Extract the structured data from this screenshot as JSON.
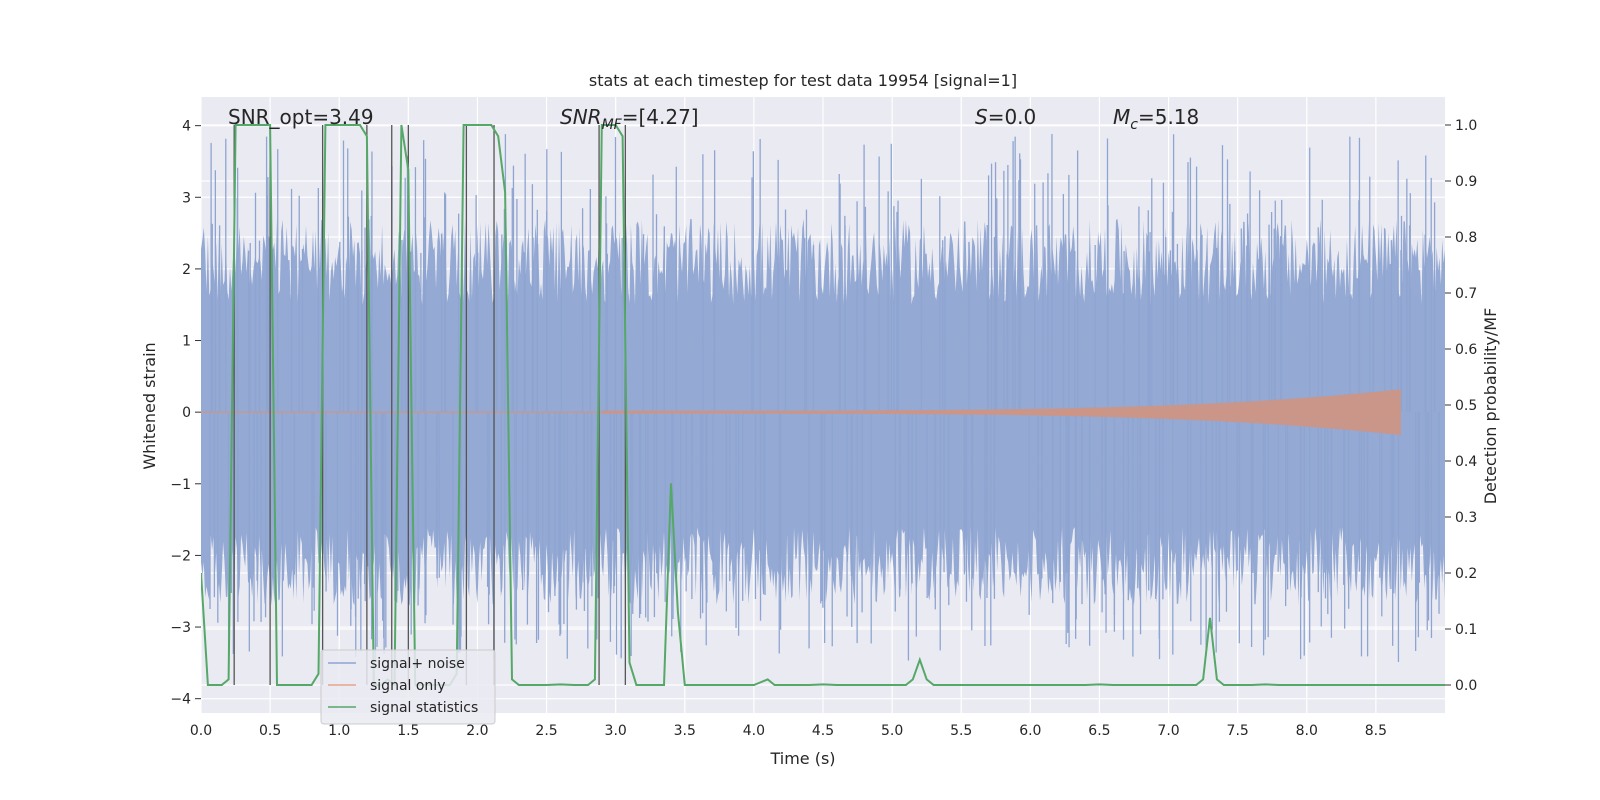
{
  "chart_data": {
    "type": "line",
    "title": "stats at each timestep for test data 19954 [signal=1]",
    "xlabel": "Time (s)",
    "ylabel_left": "Whitened strain",
    "ylabel_right": "Detection probability/MF",
    "xlim": [
      0.0,
      9.0
    ],
    "ylim_left": [
      -4.2,
      4.4
    ],
    "ylim_right": [
      -0.05,
      1.05
    ],
    "xticks": [
      "0.0",
      "0.5",
      "1.0",
      "1.5",
      "2.0",
      "2.5",
      "3.0",
      "3.5",
      "4.0",
      "4.5",
      "5.0",
      "5.5",
      "6.0",
      "6.5",
      "7.0",
      "7.5",
      "8.0",
      "8.5"
    ],
    "yticks_left": [
      "−4",
      "−3",
      "−2",
      "−1",
      "0",
      "1",
      "2",
      "3",
      "4"
    ],
    "yticks_right": [
      "0.0",
      "0.1",
      "0.2",
      "0.3",
      "0.4",
      "0.5",
      "0.6",
      "0.7",
      "0.8",
      "0.9",
      "1.0"
    ],
    "annotations": {
      "snr_opt": "SNR_opt=3.49",
      "snr_mf_main": "SNR",
      "snr_mf_sub": "MF",
      "snr_mf_value": "=[4.27]",
      "s_main": "S",
      "s_value": "=0.0",
      "mc_main": "M",
      "mc_sub": "c",
      "mc_value": "=5.18"
    },
    "legend": {
      "position": "lower-left",
      "entries": [
        {
          "label": "signal+ noise",
          "color": "#8fa5d1"
        },
        {
          "label": "signal only",
          "color": "#e6a58a"
        },
        {
          "label": "signal statistics",
          "color": "#55a868"
        }
      ]
    },
    "colors": {
      "noise": "#8fa5d1",
      "signal": "#d3937d",
      "stats": "#55a868",
      "vline": "#555555",
      "grid": "#ffffff",
      "bg": "#eaeaf2"
    },
    "series": [
      {
        "name": "signal statistics",
        "axis": "right",
        "x": [
          0.0,
          0.05,
          0.1,
          0.15,
          0.2,
          0.25,
          0.3,
          0.35,
          0.4,
          0.45,
          0.5,
          0.55,
          0.6,
          0.65,
          0.7,
          0.75,
          0.8,
          0.85,
          0.9,
          0.95,
          1.0,
          1.05,
          1.1,
          1.15,
          1.2,
          1.25,
          1.3,
          1.35,
          1.4,
          1.45,
          1.5,
          1.55,
          1.6,
          1.65,
          1.7,
          1.75,
          1.8,
          1.85,
          1.9,
          1.95,
          2.0,
          2.05,
          2.1,
          2.15,
          2.2,
          2.25,
          2.3,
          2.35,
          2.4,
          2.45,
          2.5,
          2.6,
          2.7,
          2.8,
          2.85,
          2.9,
          2.95,
          3.0,
          3.05,
          3.1,
          3.15,
          3.2,
          3.25,
          3.3,
          3.35,
          3.4,
          3.45,
          3.5,
          3.55,
          3.6,
          3.7,
          3.8,
          3.9,
          4.0,
          4.1,
          4.15,
          4.2,
          4.3,
          4.4,
          4.5,
          4.6,
          4.7,
          4.8,
          4.9,
          5.0,
          5.1,
          5.15,
          5.2,
          5.25,
          5.3,
          5.35,
          5.4,
          5.5,
          5.6,
          5.7,
          5.8,
          5.9,
          6.0,
          6.2,
          6.4,
          6.5,
          6.6,
          6.8,
          7.0,
          7.1,
          7.2,
          7.25,
          7.3,
          7.35,
          7.4,
          7.5,
          7.6,
          7.7,
          7.8,
          8.0,
          8.2,
          8.4,
          8.6,
          8.8,
          9.0
        ],
        "y": [
          0.2,
          0.0,
          0.0,
          0.0,
          0.01,
          1.0,
          1.0,
          1.0,
          1.0,
          1.0,
          1.0,
          0.0,
          0.0,
          0.0,
          0.0,
          0.0,
          0.0,
          0.02,
          1.0,
          1.0,
          1.0,
          1.0,
          1.0,
          1.0,
          0.98,
          0.0,
          0.0,
          0.01,
          0.0,
          1.0,
          0.92,
          0.0,
          0.0,
          0.0,
          0.0,
          0.0,
          0.0,
          0.02,
          1.0,
          1.0,
          1.0,
          1.0,
          1.0,
          0.98,
          0.88,
          0.01,
          0.0,
          0.0,
          0.0,
          0.0,
          0.0,
          0.001,
          0.0,
          0.0,
          0.01,
          1.0,
          1.0,
          1.0,
          0.98,
          0.04,
          0.0,
          0.0,
          0.0,
          0.0,
          0.0,
          0.36,
          0.13,
          0.0,
          0.0,
          0.0,
          0.0,
          0.0,
          0.0,
          0.0,
          0.01,
          0.0,
          0.0,
          0.0,
          0.0,
          0.001,
          0.0,
          0.0,
          0.0,
          0.0,
          0.0,
          0.0,
          0.01,
          0.045,
          0.01,
          0.0,
          0.0,
          0.0,
          0.0,
          0.0,
          0.0,
          0.0,
          0.0,
          0.0,
          0.0,
          0.0,
          0.001,
          0.0,
          0.0,
          0.0,
          0.0,
          0.0,
          0.01,
          0.12,
          0.01,
          0.0,
          0.0,
          0.0,
          0.001,
          0.0,
          0.0,
          0.0,
          0.0,
          0.0,
          0.0,
          0.0
        ]
      }
    ],
    "vlines_x": [
      0.24,
      0.5,
      0.88,
      1.2,
      1.38,
      1.5,
      1.92,
      2.12,
      2.88,
      3.07
    ]
  }
}
